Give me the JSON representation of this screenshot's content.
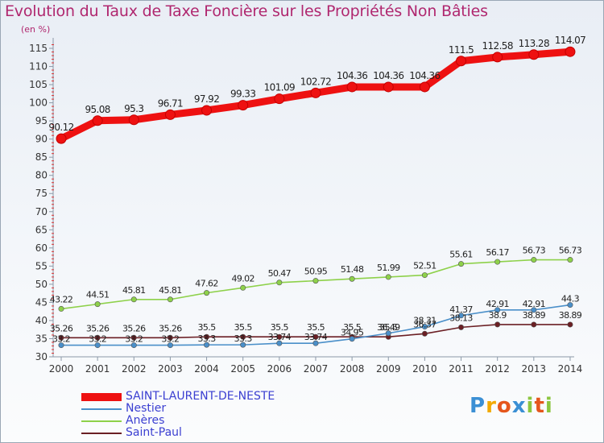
{
  "title": "Evolution du Taux de Taxe Foncière sur les Propriétés Non Bâties",
  "unit_label": "(en %)",
  "logo": {
    "letters": [
      "P",
      "r",
      "o",
      "x",
      "i",
      "t",
      "i"
    ],
    "colors": [
      "#3b8fd4",
      "#f2a900",
      "#e5561c",
      "#3b8fd4",
      "#8cc63f",
      "#e5561c",
      "#8cc63f"
    ]
  },
  "chart_data": {
    "type": "line",
    "title": "Evolution du Taux de Taxe Foncière sur les Propriétés Non Bâties",
    "xlabel": "",
    "ylabel": "(en %)",
    "ylim": [
      30,
      117
    ],
    "yticks": [
      30,
      35,
      40,
      45,
      50,
      55,
      60,
      65,
      70,
      75,
      80,
      85,
      90,
      95,
      100,
      105,
      110,
      115
    ],
    "grid": false,
    "legend_position": "bottom-left",
    "categories": [
      "2000",
      "2001",
      "2002",
      "2003",
      "2004",
      "2005",
      "2006",
      "2007",
      "2008",
      "2009",
      "2010",
      "2011",
      "2012",
      "2013",
      "2014"
    ],
    "series": [
      {
        "name": "SAINT-LAURENT-DE-NESTE",
        "color": "#ee1111",
        "values": [
          90.12,
          95.08,
          95.3,
          96.71,
          97.92,
          99.33,
          101.09,
          102.72,
          104.36,
          104.36,
          104.36,
          111.5,
          112.58,
          113.28,
          114.07
        ],
        "labels": [
          "90.12",
          "95.08",
          "95.3",
          "96.71",
          "97.92",
          "99.33",
          "101.09",
          "102.72",
          "104.36",
          "104.36",
          "104.36",
          "111.5",
          "112.58",
          "113.28",
          "114.07"
        ]
      },
      {
        "name": "Nestier",
        "color": "#4a8fc9",
        "values": [
          33.2,
          33.2,
          33.2,
          33.2,
          33.3,
          33.3,
          33.74,
          33.74,
          34.95,
          36.49,
          38.31,
          41.37,
          42.91,
          42.91,
          44.3
        ],
        "labels": [
          "33.2",
          "33.2",
          "33.2",
          "33.2",
          "33.3",
          "33.3",
          "33.74",
          "33.74",
          "34.95",
          "36.49",
          "38.31",
          "41.37",
          "42.91",
          "42.91",
          "44.3"
        ]
      },
      {
        "name": "Anères",
        "color": "#8ed14a",
        "values": [
          43.22,
          44.51,
          45.81,
          45.81,
          47.62,
          49.02,
          50.47,
          50.95,
          51.48,
          51.99,
          52.51,
          55.61,
          56.17,
          56.73,
          56.73
        ],
        "labels": [
          "43.22",
          "44.51",
          "45.81",
          "45.81",
          "47.62",
          "49.02",
          "50.47",
          "50.95",
          "51.48",
          "51.99",
          "52.51",
          "55.61",
          "56.17",
          "56.73",
          "56.73"
        ]
      },
      {
        "name": "Saint-Paul",
        "color": "#6b1f24",
        "values": [
          35.26,
          35.26,
          35.26,
          35.26,
          35.5,
          35.5,
          35.5,
          35.5,
          35.5,
          35.5,
          36.37,
          38.13,
          38.9,
          38.89,
          38.89
        ],
        "labels": [
          "35.26",
          "35.26",
          "35.26",
          "35.26",
          "35.5",
          "35.5",
          "35.5",
          "35.5",
          "35.5",
          "35.5",
          "36.37",
          "38.13",
          "38.9",
          "38.89",
          "38.89"
        ]
      }
    ]
  }
}
